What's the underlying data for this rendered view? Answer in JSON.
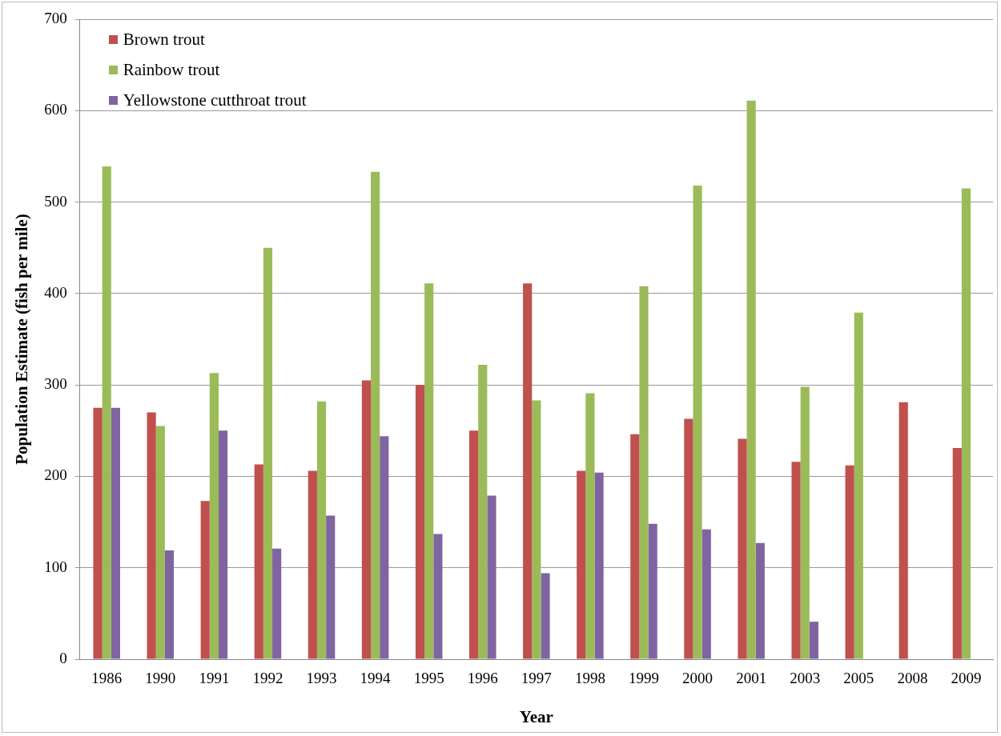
{
  "chart_data": {
    "type": "bar",
    "xlabel": "Year",
    "ylabel": "Population Estimate (fish per mile)",
    "categories": [
      "1986",
      "1990",
      "1991",
      "1992",
      "1993",
      "1994",
      "1995",
      "1996",
      "1997",
      "1998",
      "1999",
      "2000",
      "2001",
      "2003",
      "2005",
      "2008",
      "2009"
    ],
    "series": [
      {
        "name": "Brown trout",
        "color": "#c0504d",
        "values": [
          275,
          270,
          173,
          213,
          206,
          305,
          300,
          250,
          411,
          206,
          246,
          263,
          241,
          216,
          212,
          281,
          231
        ]
      },
      {
        "name": "Rainbow trout",
        "color": "#9bbb59",
        "values": [
          539,
          255,
          313,
          450,
          282,
          533,
          411,
          322,
          283,
          291,
          408,
          518,
          611,
          298,
          379,
          null,
          515
        ]
      },
      {
        "name": "Yellowstone cutthroat trout",
        "color": "#8064a2",
        "values": [
          275,
          119,
          250,
          121,
          157,
          244,
          137,
          179,
          94,
          204,
          148,
          142,
          127,
          41,
          null,
          null,
          null
        ]
      }
    ],
    "ylim": [
      0,
      700
    ],
    "yticks": [
      0,
      100,
      200,
      300,
      400,
      500,
      600,
      700
    ],
    "grid": "y",
    "legend": "top left"
  }
}
